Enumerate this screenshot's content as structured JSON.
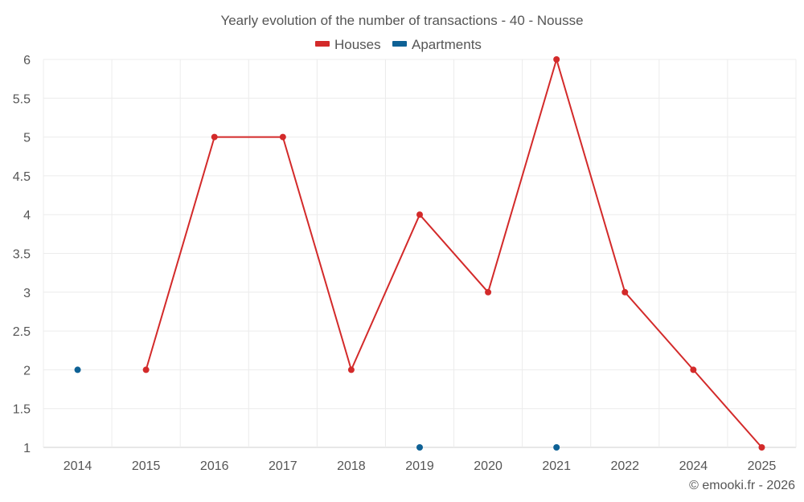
{
  "chart_data": {
    "type": "line",
    "title": "Yearly evolution of the number of transactions - 40 - Nousse",
    "categories": [
      "2014",
      "2015",
      "2016",
      "2017",
      "2018",
      "2019",
      "2020",
      "2021",
      "2022",
      "2024",
      "2025"
    ],
    "y_ticks": [
      "1",
      "1.5",
      "2",
      "2.5",
      "3",
      "3.5",
      "4",
      "4.5",
      "5",
      "5.5",
      "6"
    ],
    "ylim": [
      1,
      6
    ],
    "grid": true,
    "legend_position": "top-center",
    "series": [
      {
        "name": "Houses",
        "color": "#d32a2a",
        "style": "line-with-markers",
        "values": [
          null,
          2,
          5,
          5,
          2,
          4,
          3,
          6,
          3,
          2,
          1
        ]
      },
      {
        "name": "Apartments",
        "color": "#0e6195",
        "style": "markers",
        "values": [
          2,
          null,
          null,
          null,
          null,
          1,
          null,
          1,
          null,
          null,
          null
        ]
      }
    ],
    "credit": "© emooki.fr - 2026"
  }
}
